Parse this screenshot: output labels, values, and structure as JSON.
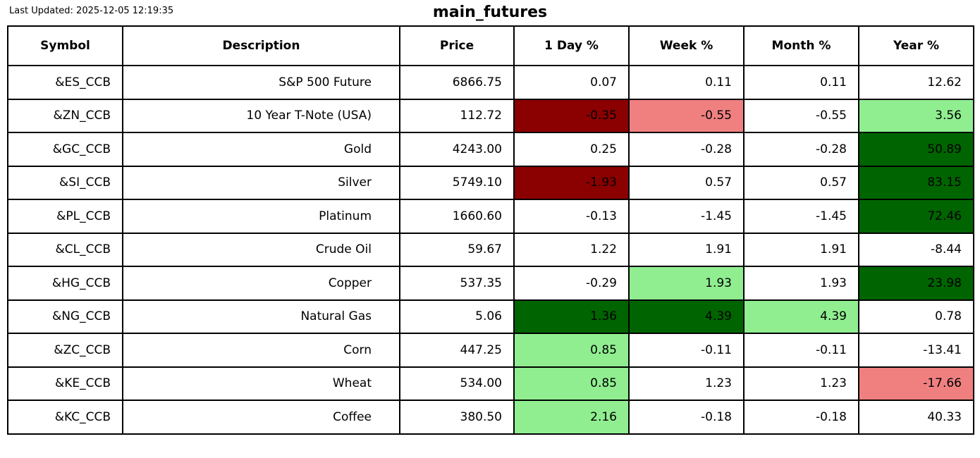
{
  "header": {
    "last_updated": "Last Updated: 2025-12-05 12:19:35",
    "title": "main_futures"
  },
  "colors": {
    "neutral": "#FFFFFF",
    "mild_negative": "#F08080",
    "strong_negative": "#8B0000",
    "mild_positive": "#90EE90",
    "strong_positive": "#006400",
    "border": "#000000",
    "text": "#000000"
  },
  "chart_data": {
    "type": "table",
    "title": "main_futures",
    "columns": [
      "Symbol",
      "Description",
      "Price",
      "1 Day %",
      "Week %",
      "Month %",
      "Year %"
    ],
    "rows": [
      {
        "symbol": "&ES_CCB",
        "description": "S&P 500 Future",
        "price": "6866.75",
        "percents": [
          {
            "value": "0.07",
            "bg": "neutral"
          },
          {
            "value": "0.11",
            "bg": "neutral"
          },
          {
            "value": "0.11",
            "bg": "neutral"
          },
          {
            "value": "12.62",
            "bg": "neutral"
          }
        ]
      },
      {
        "symbol": "&ZN_CCB",
        "description": "10 Year T-Note (USA)",
        "price": "112.72",
        "percents": [
          {
            "value": "-0.35",
            "bg": "strong_negative"
          },
          {
            "value": "-0.55",
            "bg": "mild_negative"
          },
          {
            "value": "-0.55",
            "bg": "neutral"
          },
          {
            "value": "3.56",
            "bg": "mild_positive"
          }
        ]
      },
      {
        "symbol": "&GC_CCB",
        "description": "Gold",
        "price": "4243.00",
        "percents": [
          {
            "value": "0.25",
            "bg": "neutral"
          },
          {
            "value": "-0.28",
            "bg": "neutral"
          },
          {
            "value": "-0.28",
            "bg": "neutral"
          },
          {
            "value": "50.89",
            "bg": "strong_positive"
          }
        ]
      },
      {
        "symbol": "&SI_CCB",
        "description": "Silver",
        "price": "5749.10",
        "percents": [
          {
            "value": "-1.93",
            "bg": "strong_negative"
          },
          {
            "value": "0.57",
            "bg": "neutral"
          },
          {
            "value": "0.57",
            "bg": "neutral"
          },
          {
            "value": "83.15",
            "bg": "strong_positive"
          }
        ]
      },
      {
        "symbol": "&PL_CCB",
        "description": "Platinum",
        "price": "1660.60",
        "percents": [
          {
            "value": "-0.13",
            "bg": "neutral"
          },
          {
            "value": "-1.45",
            "bg": "neutral"
          },
          {
            "value": "-1.45",
            "bg": "neutral"
          },
          {
            "value": "72.46",
            "bg": "strong_positive"
          }
        ]
      },
      {
        "symbol": "&CL_CCB",
        "description": "Crude Oil",
        "price": "59.67",
        "percents": [
          {
            "value": "1.22",
            "bg": "neutral"
          },
          {
            "value": "1.91",
            "bg": "neutral"
          },
          {
            "value": "1.91",
            "bg": "neutral"
          },
          {
            "value": "-8.44",
            "bg": "neutral"
          }
        ]
      },
      {
        "symbol": "&HG_CCB",
        "description": "Copper",
        "price": "537.35",
        "percents": [
          {
            "value": "-0.29",
            "bg": "neutral"
          },
          {
            "value": "1.93",
            "bg": "mild_positive"
          },
          {
            "value": "1.93",
            "bg": "neutral"
          },
          {
            "value": "23.98",
            "bg": "strong_positive"
          }
        ]
      },
      {
        "symbol": "&NG_CCB",
        "description": "Natural Gas",
        "price": "5.06",
        "percents": [
          {
            "value": "1.36",
            "bg": "strong_positive"
          },
          {
            "value": "4.39",
            "bg": "strong_positive"
          },
          {
            "value": "4.39",
            "bg": "mild_positive"
          },
          {
            "value": "0.78",
            "bg": "neutral"
          }
        ]
      },
      {
        "symbol": "&ZC_CCB",
        "description": "Corn",
        "price": "447.25",
        "percents": [
          {
            "value": "0.85",
            "bg": "mild_positive"
          },
          {
            "value": "-0.11",
            "bg": "neutral"
          },
          {
            "value": "-0.11",
            "bg": "neutral"
          },
          {
            "value": "-13.41",
            "bg": "neutral"
          }
        ]
      },
      {
        "symbol": "&KE_CCB",
        "description": "Wheat",
        "price": "534.00",
        "percents": [
          {
            "value": "0.85",
            "bg": "mild_positive"
          },
          {
            "value": "1.23",
            "bg": "neutral"
          },
          {
            "value": "1.23",
            "bg": "neutral"
          },
          {
            "value": "-17.66",
            "bg": "mild_negative"
          }
        ]
      },
      {
        "symbol": "&KC_CCB",
        "description": "Coffee",
        "price": "380.50",
        "percents": [
          {
            "value": "2.16",
            "bg": "mild_positive"
          },
          {
            "value": "-0.18",
            "bg": "neutral"
          },
          {
            "value": "-0.18",
            "bg": "neutral"
          },
          {
            "value": "40.33",
            "bg": "neutral"
          }
        ]
      }
    ]
  }
}
